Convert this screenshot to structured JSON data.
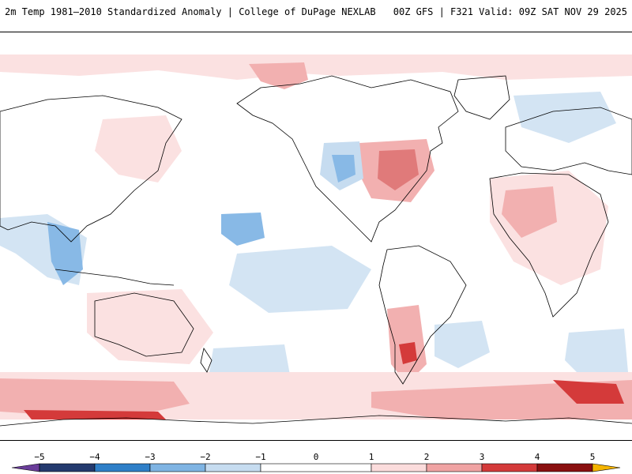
{
  "header": {
    "title_left": "2m Temp 1981–2010 Standardized Anomaly | College of DuPage NEXLAB",
    "title_right": "00Z GFS | F321 Valid: 09Z SAT NOV 29 2025"
  },
  "map": {
    "projection": "cylindrical-pacific-centered",
    "coastline_color": "#000000",
    "field": "2m temperature standardized anomaly"
  },
  "colorbar": {
    "tick_labels": [
      "−5",
      "−4",
      "−3",
      "−2",
      "−1",
      "0",
      "1",
      "2",
      "3",
      "4",
      "5"
    ],
    "bins": [
      {
        "from": -5.5,
        "to": -5,
        "color": "#6a3d9a"
      },
      {
        "from": -5,
        "to": -4,
        "color": "#243a6e"
      },
      {
        "from": -4,
        "to": -3,
        "color": "#2f7fc8"
      },
      {
        "from": -3,
        "to": -2,
        "color": "#7fb4e3"
      },
      {
        "from": -2,
        "to": -1,
        "color": "#c6dcf0"
      },
      {
        "from": -1,
        "to": 1,
        "color": "#ffffff"
      },
      {
        "from": 1,
        "to": 2,
        "color": "#fbdcdc"
      },
      {
        "from": 2,
        "to": 3,
        "color": "#f0a3a3"
      },
      {
        "from": 3,
        "to": 4,
        "color": "#d43a3a"
      },
      {
        "from": 4,
        "to": 5,
        "color": "#8a1010"
      },
      {
        "from": 5,
        "to": 5.5,
        "color": "#f4b400"
      }
    ]
  },
  "anomaly_colors": {
    "warm_light": "#fbe1e1",
    "warm_mid": "#f2b0b0",
    "warm_strong": "#d43a3a",
    "cool_light": "#d3e4f3",
    "cool_mid": "#88b9e6",
    "cool_strong": "#3a86d0"
  }
}
